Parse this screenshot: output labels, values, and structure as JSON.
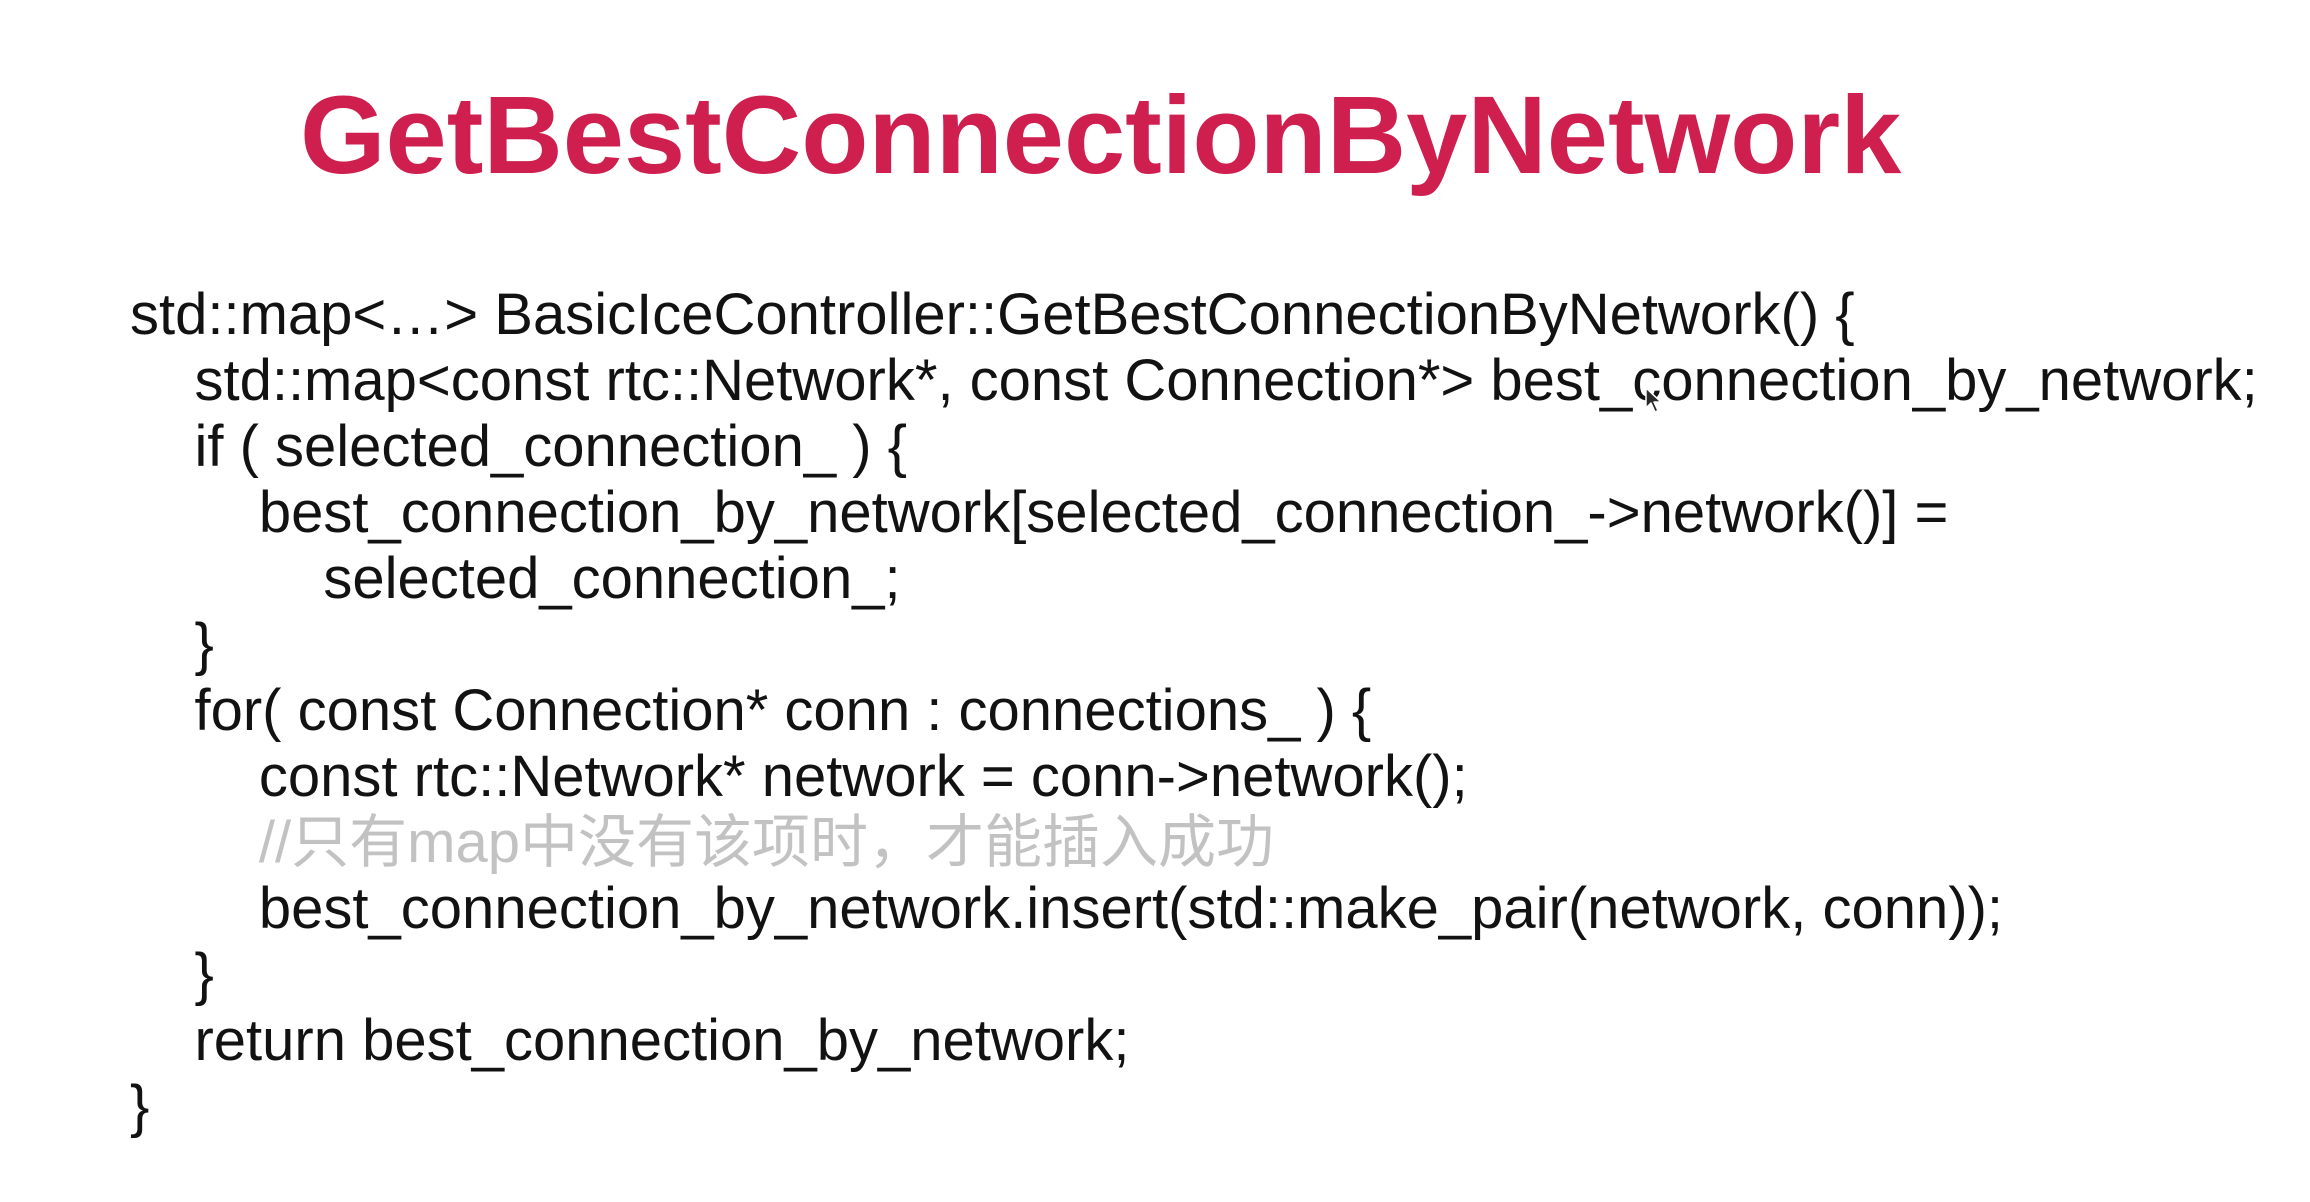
{
  "slide": {
    "title": "GetBestConnectionByNetwork"
  },
  "code": {
    "lines": [
      "std::map<…> BasicIceController::GetBestConnectionByNetwork() {",
      "    std::map<const rtc::Network*, const Connection*> best_connection_by_network;",
      "    if ( selected_connection_ ) {",
      "        best_connection_by_network[selected_connection_->network()] =",
      "            selected_connection_;",
      "    }",
      "    for( const Connection* conn : connections_ ) {",
      "        const rtc::Network* network = conn->network();",
      "        //只有map中没有该项时，才能插入成功",
      "        best_connection_by_network.insert(std::make_pair(network, conn));",
      "    }",
      "    return best_connection_by_network;",
      "}"
    ]
  },
  "colors": {
    "title": "#cf1f4f",
    "code": "#121212",
    "comment": "#c2c2c2"
  },
  "icons": {
    "cursor": "mouse-cursor-icon"
  }
}
